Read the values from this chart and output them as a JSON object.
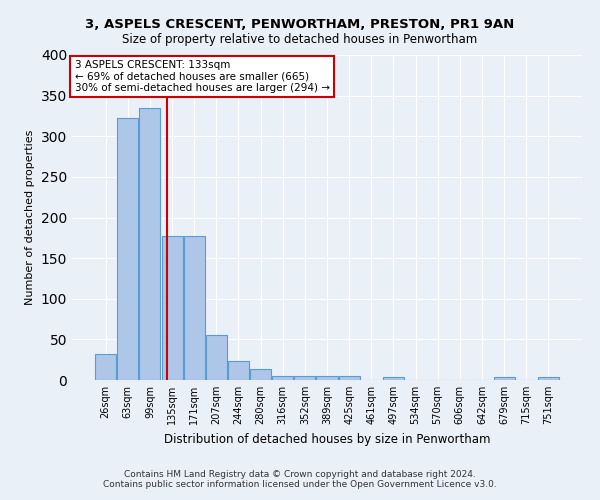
{
  "title1": "3, ASPELS CRESCENT, PENWORTHAM, PRESTON, PR1 9AN",
  "title2": "Size of property relative to detached houses in Penwortham",
  "xlabel": "Distribution of detached houses by size in Penwortham",
  "ylabel": "Number of detached properties",
  "footnote1": "Contains HM Land Registry data © Crown copyright and database right 2024.",
  "footnote2": "Contains public sector information licensed under the Open Government Licence v3.0.",
  "bin_labels": [
    "26sqm",
    "63sqm",
    "99sqm",
    "135sqm",
    "171sqm",
    "207sqm",
    "244sqm",
    "280sqm",
    "316sqm",
    "352sqm",
    "389sqm",
    "425sqm",
    "461sqm",
    "497sqm",
    "534sqm",
    "570sqm",
    "606sqm",
    "642sqm",
    "679sqm",
    "715sqm",
    "751sqm"
  ],
  "bar_values": [
    32,
    323,
    335,
    177,
    177,
    55,
    23,
    14,
    5,
    5,
    5,
    5,
    0,
    4,
    0,
    0,
    0,
    0,
    4,
    0,
    4
  ],
  "bar_color": "#aec6e8",
  "bar_edge_color": "#5b9bd5",
  "bg_color": "#eaf0f8",
  "grid_color": "#ffffff",
  "vline_x": 2.75,
  "vline_color": "#cc0000",
  "annotation_line1": "3 ASPELS CRESCENT: 133sqm",
  "annotation_line2": "← 69% of detached houses are smaller (665)",
  "annotation_line3": "30% of semi-detached houses are larger (294) →",
  "annotation_box_color": "#ffffff",
  "annotation_box_edge": "#cc0000",
  "ylim": [
    0,
    400
  ],
  "yticks": [
    0,
    50,
    100,
    150,
    200,
    250,
    300,
    350,
    400
  ]
}
